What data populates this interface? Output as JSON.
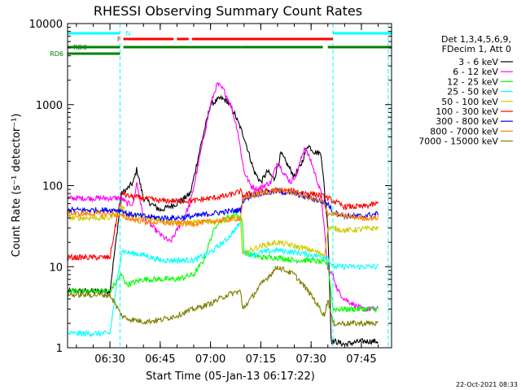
{
  "chart_data": {
    "type": "line",
    "title": "RHESSI Observing Summary Count Rates",
    "xlabel": "Start Time (05-Jan-13 06:17:22)",
    "ylabel": "Count Rate (s⁻¹ detector⁻¹)",
    "timestamp": "22-Oct-2021 08:33",
    "y_scale": "log",
    "ylim": [
      1,
      10000
    ],
    "y_ticks": [
      1,
      10,
      100,
      1000,
      10000
    ],
    "y_tick_labels": [
      "1",
      "10",
      "100",
      "1000",
      "10000"
    ],
    "xlim": [
      "06:17:22",
      "07:54:00"
    ],
    "x_ticks": [
      "06:30",
      "06:45",
      "07:00",
      "07:15",
      "07:30",
      "07:45"
    ],
    "legend_position": "right",
    "legend_header": [
      "Det 1,3,4,5,6,9,",
      "FDecim 1, Att 0"
    ],
    "flags": [
      {
        "label": "N",
        "color": "#00ffff",
        "intervals": [
          [
            "06:17:22",
            "06:33:00"
          ],
          [
            "07:36:30",
            "07:54:00"
          ]
        ]
      },
      {
        "label": "F",
        "color": "#ff0000",
        "intervals": [
          [
            "06:34:00",
            "06:49:00"
          ],
          [
            "06:50:00",
            "06:53:30"
          ],
          [
            "06:54:30",
            "07:36:30"
          ]
        ]
      },
      {
        "label": "RD0",
        "color": "#008000",
        "intervals": [
          [
            "06:17:22",
            "06:33:00"
          ],
          [
            "06:34:00",
            "07:09:30"
          ],
          [
            "07:09:30",
            "07:33:30"
          ],
          [
            "07:35:00",
            "07:54:00"
          ]
        ]
      },
      {
        "label": "RD6",
        "color": "#008000",
        "intervals": [
          [
            "06:17:22",
            "06:33:00"
          ]
        ]
      }
    ],
    "vlines": [
      {
        "time": "06:33:00",
        "color": "#00ffff"
      },
      {
        "time": "07:36:30",
        "color": "#00ffff"
      },
      {
        "time": "07:53:00",
        "color": "#00ffff"
      }
    ],
    "series": [
      {
        "name": "3 - 6 keV",
        "color": "#000000",
        "x": [
          "06:17:22",
          "06:20:00",
          "06:25:00",
          "06:30:00",
          "06:33:30",
          "06:35:00",
          "06:37:00",
          "06:38:00",
          "06:40:00",
          "06:45:00",
          "06:50:00",
          "06:54:00",
          "06:57:00",
          "07:00:00",
          "07:03:00",
          "07:05:00",
          "07:07:00",
          "07:10:00",
          "07:13:00",
          "07:15:00",
          "07:17:00",
          "07:19:00",
          "07:21:00",
          "07:23:00",
          "07:25:00",
          "07:27:00",
          "07:29:00",
          "07:31:00",
          "07:33:00",
          "07:35:00",
          "07:36:00",
          "07:37:00",
          "07:40:00",
          "07:45:00",
          "07:50:00"
        ],
        "values": [
          5,
          5,
          5,
          5,
          80,
          90,
          110,
          160,
          70,
          50,
          60,
          80,
          300,
          1000,
          1200,
          1100,
          800,
          400,
          150,
          110,
          150,
          120,
          250,
          180,
          130,
          180,
          320,
          260,
          250,
          30,
          1.2,
          1.2,
          1.1,
          1.2,
          1.2
        ]
      },
      {
        "name": "6 - 12 keV",
        "color": "#ff00ff",
        "x": [
          "06:17:22",
          "06:20:00",
          "06:25:00",
          "06:30:00",
          "06:33:30",
          "06:35:00",
          "06:37:00",
          "06:38:00",
          "06:40:00",
          "06:45:00",
          "06:48:00",
          "06:50:00",
          "06:54:00",
          "06:57:00",
          "07:00:00",
          "07:02:00",
          "07:04:00",
          "07:06:00",
          "07:08:00",
          "07:10:00",
          "07:12:00",
          "07:14:00",
          "07:16:00",
          "07:18:00",
          "07:20:00",
          "07:22:00",
          "07:24:00",
          "07:26:00",
          "07:28:00",
          "07:30:00",
          "07:33:00",
          "07:35:00",
          "07:36:30",
          "07:38:00",
          "07:40:00",
          "07:45:00",
          "07:50:00"
        ],
        "values": [
          70,
          70,
          70,
          70,
          70,
          60,
          60,
          110,
          40,
          25,
          20,
          28,
          60,
          250,
          1000,
          1800,
          1500,
          1000,
          500,
          150,
          100,
          90,
          100,
          110,
          200,
          140,
          110,
          150,
          300,
          200,
          80,
          9,
          8,
          5,
          4,
          3,
          3
        ]
      },
      {
        "name": "12 - 25 keV",
        "color": "#00ff00",
        "x": [
          "06:17:22",
          "06:20:00",
          "06:25:00",
          "06:30:00",
          "06:33:30",
          "06:35:00",
          "06:40:00",
          "06:45:00",
          "06:50:00",
          "06:55:00",
          "06:58:00",
          "07:00:00",
          "07:02:00",
          "07:05:00",
          "07:08:00",
          "07:09:30",
          "07:10:00",
          "07:15:00",
          "07:20:00",
          "07:25:00",
          "07:30:00",
          "07:35:00",
          "07:36:30",
          "07:40:00",
          "07:45:00",
          "07:50:00"
        ],
        "values": [
          5,
          5,
          5,
          5,
          8,
          6,
          7,
          7,
          7,
          8,
          12,
          22,
          35,
          40,
          45,
          35,
          15,
          13,
          13,
          12,
          12,
          11,
          3,
          3,
          3,
          3
        ]
      },
      {
        "name": "25 - 50 keV",
        "color": "#00ffff",
        "x": [
          "06:17:22",
          "06:20:00",
          "06:25:00",
          "06:30:00",
          "06:33:30",
          "06:35:00",
          "06:40:00",
          "06:45:00",
          "06:50:00",
          "06:55:00",
          "07:00:00",
          "07:05:00",
          "07:09:00",
          "07:09:30",
          "07:12:00",
          "07:15:00",
          "07:20:00",
          "07:25:00",
          "07:30:00",
          "07:35:00",
          "07:36:30",
          "07:40:00",
          "07:45:00",
          "07:50:00"
        ],
        "values": [
          1.5,
          1.5,
          1.5,
          1.5,
          16,
          15,
          14,
          12,
          12,
          12,
          15,
          22,
          35,
          16,
          14,
          15,
          16,
          15,
          14,
          13,
          10,
          10,
          10,
          10
        ]
      },
      {
        "name": "50 - 100 keV",
        "color": "#cccc00",
        "x": [
          "06:17:22",
          "06:20:00",
          "06:25:00",
          "06:30:00",
          "06:33:30",
          "06:35:00",
          "06:40:00",
          "06:45:00",
          "06:50:00",
          "06:55:00",
          "07:00:00",
          "07:05:00",
          "07:09:00",
          "07:09:30",
          "07:12:00",
          "07:15:00",
          "07:20:00",
          "07:25:00",
          "07:30:00",
          "07:34:00",
          "07:35:00",
          "07:36:30",
          "07:40:00",
          "07:45:00",
          "07:50:00"
        ],
        "values": [
          40,
          40,
          40,
          40,
          55,
          45,
          40,
          38,
          35,
          35,
          36,
          38,
          40,
          14,
          16,
          18,
          20,
          18,
          16,
          14,
          30,
          30,
          28,
          29,
          30
        ]
      },
      {
        "name": "100 - 300 keV",
        "color": "#ff0000",
        "x": [
          "06:17:22",
          "06:20:00",
          "06:25:00",
          "06:30:00",
          "06:33:30",
          "06:35:00",
          "06:40:00",
          "06:45:00",
          "06:50:00",
          "06:55:00",
          "07:00:00",
          "07:05:00",
          "07:09:00",
          "07:09:30",
          "07:12:00",
          "07:15:00",
          "07:20:00",
          "07:25:00",
          "07:30:00",
          "07:33:00",
          "07:35:00",
          "07:36:30",
          "07:40:00",
          "07:45:00",
          "07:50:00"
        ],
        "values": [
          13,
          13,
          13,
          13,
          85,
          75,
          70,
          65,
          65,
          65,
          70,
          75,
          85,
          75,
          80,
          85,
          88,
          85,
          80,
          75,
          70,
          65,
          55,
          55,
          60
        ]
      },
      {
        "name": "300 - 800 keV",
        "color": "#0000ff",
        "x": [
          "06:17:22",
          "06:20:00",
          "06:25:00",
          "06:30:00",
          "06:33:30",
          "06:35:00",
          "06:40:00",
          "06:45:00",
          "06:50:00",
          "06:55:00",
          "07:00:00",
          "07:05:00",
          "07:09:00",
          "07:09:30",
          "07:12:00",
          "07:15:00",
          "07:20:00",
          "07:25:00",
          "07:30:00",
          "07:35:00",
          "07:36:30",
          "07:40:00",
          "07:45:00",
          "07:50:00"
        ],
        "values": [
          50,
          50,
          50,
          50,
          50,
          45,
          42,
          40,
          40,
          42,
          45,
          48,
          50,
          65,
          75,
          80,
          85,
          80,
          70,
          60,
          48,
          42,
          42,
          45
        ]
      },
      {
        "name": "800 - 7000 keV",
        "color": "#ff8000",
        "x": [
          "06:17:22",
          "06:20:00",
          "06:25:00",
          "06:30:00",
          "06:33:30",
          "06:35:00",
          "06:40:00",
          "06:45:00",
          "06:50:00",
          "06:55:00",
          "07:00:00",
          "07:05:00",
          "07:09:00",
          "07:09:30",
          "07:12:00",
          "07:15:00",
          "07:20:00",
          "07:25:00",
          "07:30:00",
          "07:34:00",
          "07:35:00",
          "07:36:30",
          "07:40:00",
          "07:45:00",
          "07:50:00"
        ],
        "values": [
          45,
          45,
          45,
          45,
          42,
          40,
          36,
          35,
          34,
          34,
          36,
          38,
          40,
          65,
          75,
          80,
          88,
          82,
          70,
          60,
          45,
          45,
          42,
          40,
          40
        ]
      },
      {
        "name": "7000 - 15000 keV",
        "color": "#808000",
        "x": [
          "06:17:22",
          "06:20:00",
          "06:25:00",
          "06:30:00",
          "06:33:30",
          "06:35:00",
          "06:40:00",
          "06:45:00",
          "06:50:00",
          "06:55:00",
          "07:00:00",
          "07:05:00",
          "07:09:00",
          "07:09:30",
          "07:12:00",
          "07:15:00",
          "07:20:00",
          "07:25:00",
          "07:30:00",
          "07:34:00",
          "07:35:00",
          "07:36:30",
          "07:40:00",
          "07:45:00",
          "07:50:00"
        ],
        "values": [
          4.5,
          4.5,
          4.5,
          4.5,
          2.5,
          2.3,
          2.1,
          2.2,
          2.5,
          3,
          3.5,
          4.5,
          5,
          3,
          4,
          6,
          10,
          8,
          4.5,
          2.5,
          4,
          2,
          2,
          2,
          2
        ]
      }
    ]
  }
}
